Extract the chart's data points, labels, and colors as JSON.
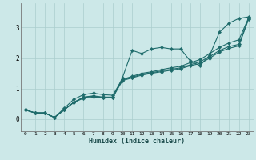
{
  "xlabel": "Humidex (Indice chaleur)",
  "bg_color": "#cce8e8",
  "grid_color": "#aacece",
  "line_color": "#1e6b6b",
  "xlim": [
    -0.5,
    23.5
  ],
  "ylim": [
    -0.4,
    3.8
  ],
  "yticks": [
    0,
    1,
    2,
    3
  ],
  "xticks": [
    0,
    1,
    2,
    3,
    4,
    5,
    6,
    7,
    8,
    9,
    10,
    11,
    12,
    13,
    14,
    15,
    16,
    17,
    18,
    19,
    20,
    21,
    22,
    23
  ],
  "series": [
    [
      0.3,
      0.2,
      0.2,
      0.05,
      0.3,
      0.55,
      0.7,
      0.75,
      0.7,
      0.7,
      1.35,
      2.25,
      2.15,
      2.3,
      2.35,
      2.3,
      2.3,
      1.9,
      1.75,
      2.1,
      2.85,
      3.15,
      3.3,
      3.35
    ],
    [
      0.3,
      0.2,
      0.2,
      0.05,
      0.35,
      0.65,
      0.8,
      0.85,
      0.8,
      0.78,
      1.3,
      1.4,
      1.5,
      1.55,
      1.62,
      1.68,
      1.73,
      1.85,
      1.95,
      2.15,
      2.35,
      2.5,
      2.6,
      3.32
    ],
    [
      0.3,
      0.2,
      0.2,
      0.05,
      0.3,
      0.55,
      0.72,
      0.76,
      0.72,
      0.72,
      1.28,
      1.37,
      1.47,
      1.52,
      1.58,
      1.63,
      1.68,
      1.78,
      1.88,
      2.05,
      2.25,
      2.38,
      2.45,
      3.3
    ],
    [
      0.3,
      0.2,
      0.2,
      0.05,
      0.3,
      0.55,
      0.68,
      0.72,
      0.7,
      0.7,
      1.26,
      1.35,
      1.44,
      1.5,
      1.55,
      1.6,
      1.65,
      1.75,
      1.82,
      2.0,
      2.2,
      2.32,
      2.4,
      3.28
    ]
  ]
}
